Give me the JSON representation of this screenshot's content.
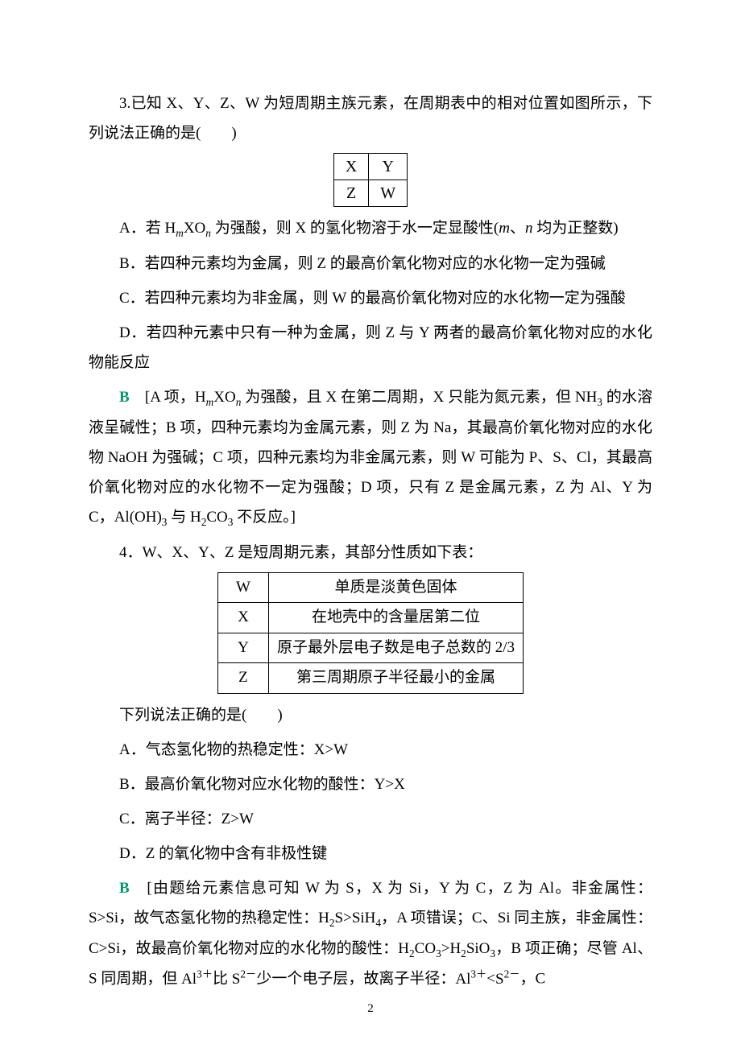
{
  "colors": {
    "text": "#000000",
    "answer": "#009966",
    "background": "#ffffff",
    "border": "#000000"
  },
  "typography": {
    "body_family": "SimSun / Songti SC serif",
    "latin_family": "Times New Roman",
    "body_fontsize_pt": 14,
    "line_height": 1.95
  },
  "page_number": "2",
  "q3": {
    "stem": "3.已知 X、Y、Z、W 为短周期主族元素，在周期表中的相对位置如图所示，下列说法正确的是(　　)",
    "table": {
      "rows": [
        [
          "X",
          "Y"
        ],
        [
          "Z",
          "W"
        ]
      ],
      "col_count": 2,
      "row_count": 2
    },
    "options": {
      "A": "A．若 H{m}XO{n} 为强酸，则 X 的氢化物溶于水一定显酸性(m、n 均为正整数)",
      "B": "B．若四种元素均为金属，则 Z 的最高价氧化物对应的水化物一定为强碱",
      "C": "C．若四种元素均为非金属，则 W 的最高价氧化物对应的水化物一定为强酸",
      "D": "D．若四种元素中只有一种为金属，则 Z 与 Y 两者的最高价氧化物对应的水化物能反应"
    },
    "answer_key": "B",
    "explanation": "[A 项，H{m}XO{n} 为强酸，且 X 在第二周期，X 只能为氮元素，但 NH3 的水溶液呈碱性；B 项，四种元素均为金属元素，则 Z 为 Na，其最高价氧化物对应的水化物 NaOH 为强碱；C 项，四种元素均为非金属元素，则 W 可能为 P、S、Cl，其最高价氧化物对应的水化物不一定为强酸；D 项，只有 Z 是金属元素，Z 为 Al、Y 为 C，Al(OH)3 与 H2CO3 不反应。]"
  },
  "q4": {
    "stem": "4．W、X、Y、Z 是短周期元素，其部分性质如下表：",
    "table": {
      "rows": [
        {
          "label": "W",
          "desc": "单质是淡黄色固体"
        },
        {
          "label": "X",
          "desc": "在地壳中的含量居第二位"
        },
        {
          "label": "Y",
          "desc": "原子最外层电子数是电子总数的 2/3"
        },
        {
          "label": "Z",
          "desc": "第三周期原子半径最小的金属"
        }
      ]
    },
    "sub_stem": "下列说法正确的是(　　)",
    "options": {
      "A": "A．气态氢化物的热稳定性：X>W",
      "B": "B．最高价氧化物对应水化物的酸性：Y>X",
      "C": "C．离子半径：Z>W",
      "D": "D．Z 的氧化物中含有非极性键"
    },
    "answer_key": "B",
    "explanation": "[由题给元素信息可知 W 为 S，X 为 Si，Y 为 C，Z 为 Al。非金属性：S>Si，故气态氢化物的热稳定性：H2S>SiH4，A 项错误；C、Si 同主族，非金属性：C>Si，故最高价氧化物对应的水化物的酸性：H2CO3>H2SiO3，B 项正确；尽管 Al、S 同周期，但 Al3+ 比 S2− 少一个电子层，故离子半径：Al3+<S2−，C"
  }
}
